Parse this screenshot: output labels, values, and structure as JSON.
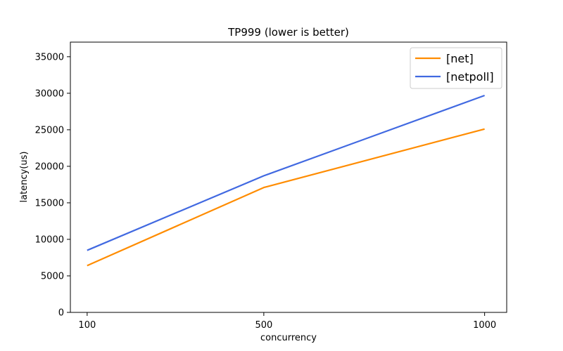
{
  "chart_data": {
    "type": "line",
    "title": "TP999 (lower is better)",
    "xlabel": "concurrency",
    "ylabel": "latency(us)",
    "x": [
      100,
      500,
      1000
    ],
    "x_ticks": [
      100,
      500,
      1000
    ],
    "xlim": [
      62,
      1050
    ],
    "y_ticks": [
      0,
      5000,
      10000,
      15000,
      20000,
      25000,
      30000,
      35000
    ],
    "ylim": [
      0,
      37000
    ],
    "grid": false,
    "legend_position": "top-right",
    "series": [
      {
        "name": "[net]",
        "color": "#ff8c00",
        "values": [
          6400,
          17100,
          25100
        ]
      },
      {
        "name": "[netpoll]",
        "color": "#4169e1",
        "values": [
          8500,
          18700,
          29700
        ]
      }
    ]
  }
}
